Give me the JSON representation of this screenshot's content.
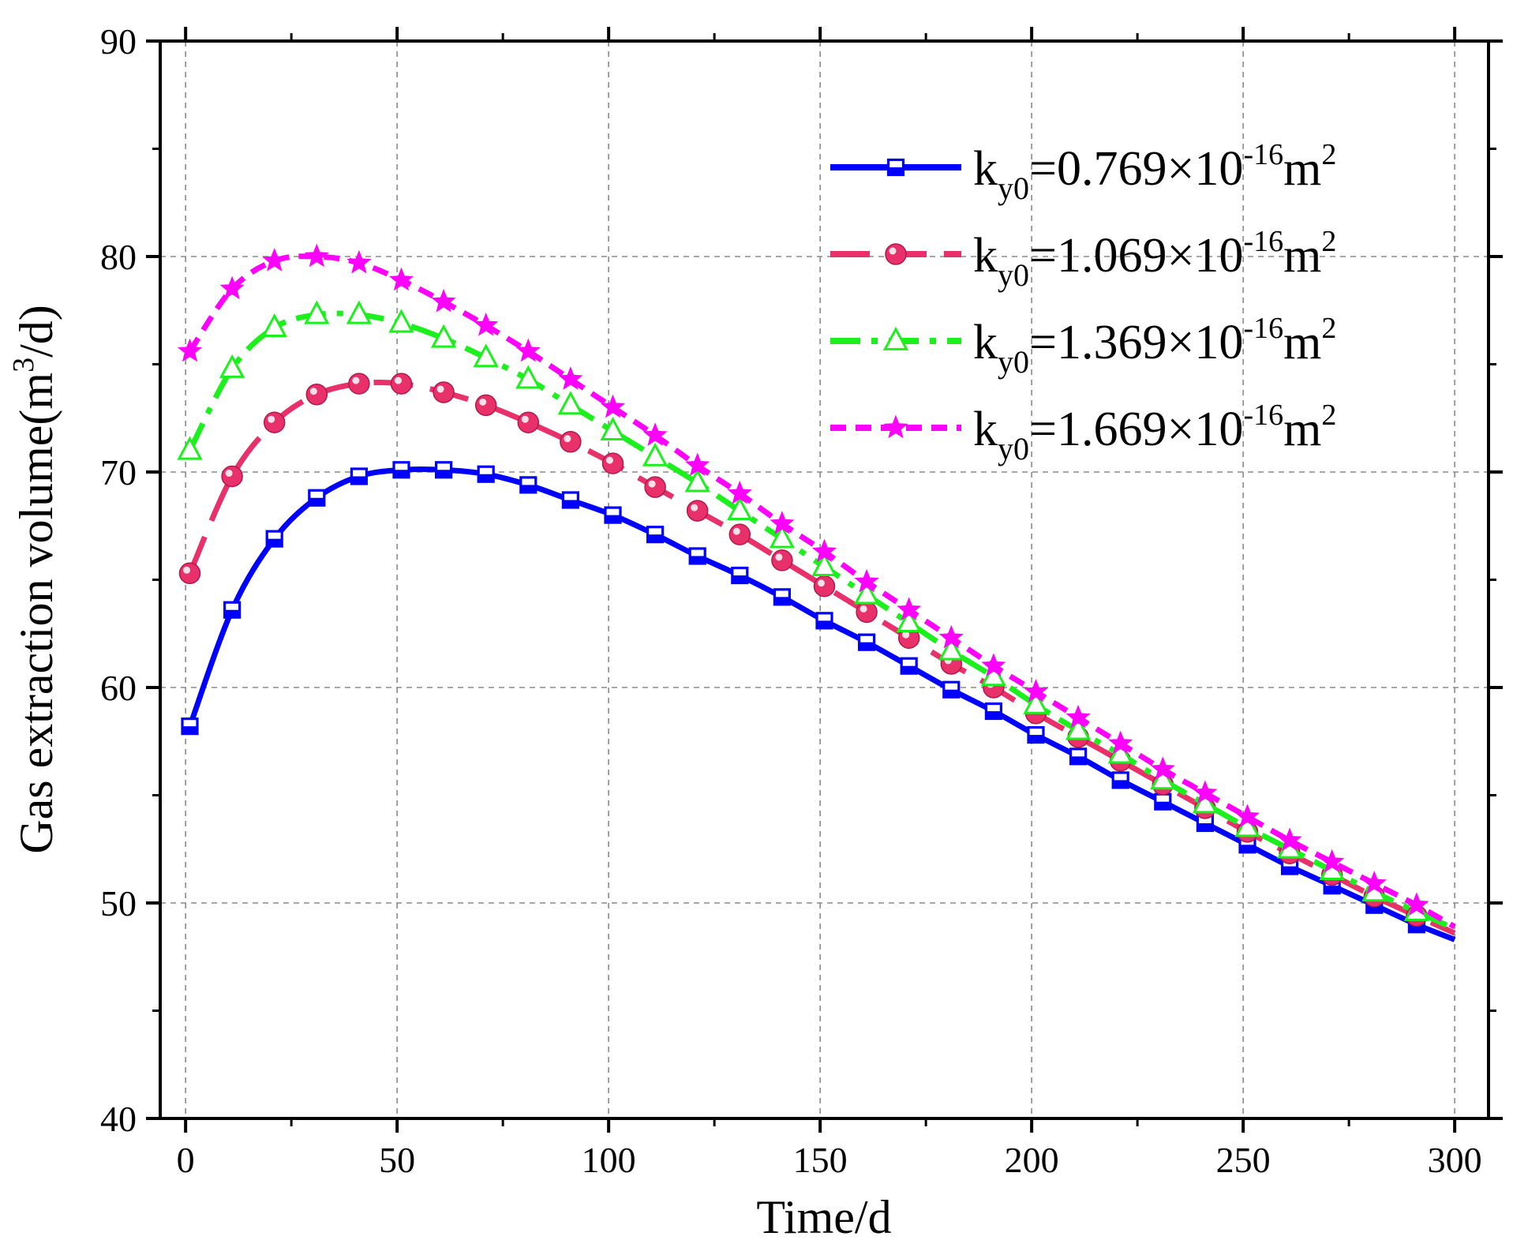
{
  "chart_data": {
    "type": "line",
    "title": "",
    "xlabel": "Time/d",
    "ylabel": {
      "main": "Gas extraction volume(m",
      "sup": "3",
      "tail": "/d)"
    },
    "xlim": [
      -6,
      308
    ],
    "ylim": [
      40,
      90
    ],
    "xticks": [
      0,
      50,
      100,
      150,
      200,
      250,
      300
    ],
    "yticks": [
      40,
      50,
      60,
      70,
      80,
      90
    ],
    "x_tick_labels": [
      "0",
      "50",
      "100",
      "150",
      "200",
      "250",
      "300"
    ],
    "y_tick_labels": [
      "40",
      "50",
      "60",
      "70",
      "80",
      "90"
    ],
    "grid": true,
    "legend_position": "top-right",
    "x": [
      1,
      11,
      21,
      31,
      41,
      51,
      61,
      71,
      81,
      91,
      101,
      111,
      121,
      131,
      141,
      151,
      161,
      171,
      181,
      191,
      201,
      211,
      221,
      231,
      241,
      251,
      261,
      271,
      281,
      291,
      300
    ],
    "series": [
      {
        "name": "ky0=0.769×10-16m2",
        "legend": {
          "k": "k",
          "sub": "y0",
          "mid": "=0.769×10",
          "sup1": "-16",
          "unit": "m",
          "sup2": "2"
        },
        "color": "#0000ff",
        "marker": "square-half",
        "dash": "",
        "values": [
          58.2,
          63.6,
          66.9,
          68.8,
          69.8,
          70.1,
          70.1,
          69.9,
          69.4,
          68.7,
          68.0,
          67.1,
          66.1,
          65.2,
          64.2,
          63.1,
          62.1,
          61.0,
          59.9,
          58.9,
          57.8,
          56.8,
          55.7,
          54.7,
          53.7,
          52.7,
          51.7,
          50.8,
          49.9,
          49.0,
          48.3
        ]
      },
      {
        "name": "ky0=1.069×10-16m2",
        "legend": {
          "k": "k",
          "sub": "y0",
          "mid": "=1.069×10",
          "sup1": "-16",
          "unit": "m",
          "sup2": "2"
        },
        "color": "#e8306a",
        "marker": "circle",
        "dash": "50 22",
        "values": [
          65.3,
          69.8,
          72.3,
          73.6,
          74.1,
          74.1,
          73.7,
          73.1,
          72.3,
          71.4,
          70.4,
          69.3,
          68.2,
          67.1,
          65.9,
          64.7,
          63.5,
          62.3,
          61.1,
          60.0,
          58.8,
          57.7,
          56.6,
          55.5,
          54.4,
          53.3,
          52.3,
          51.3,
          50.3,
          49.4,
          48.6
        ]
      },
      {
        "name": "ky0=1.369×10-16m2",
        "legend": {
          "k": "k",
          "sub": "y0",
          "mid": "=1.369×10",
          "sup1": "-16",
          "unit": "m",
          "sup2": "2"
        },
        "color": "#1cf01c",
        "marker": "triangle",
        "dash": "38 14 8 14",
        "values": [
          71.0,
          74.8,
          76.7,
          77.3,
          77.3,
          76.9,
          76.2,
          75.3,
          74.3,
          73.1,
          71.9,
          70.7,
          69.5,
          68.2,
          66.9,
          65.6,
          64.3,
          63.0,
          61.7,
          60.5,
          59.2,
          58.0,
          56.9,
          55.7,
          54.6,
          53.5,
          52.5,
          51.5,
          50.5,
          49.6,
          48.8
        ]
      },
      {
        "name": "ky0=1.669×10-16m2",
        "legend": {
          "k": "k",
          "sub": "y0",
          "mid": "=1.669×10",
          "sup1": "-16",
          "unit": "m",
          "sup2": "2"
        },
        "color": "#ff00ff",
        "marker": "star",
        "dash": "20 12",
        "values": [
          75.6,
          78.5,
          79.8,
          80.0,
          79.7,
          78.9,
          77.9,
          76.8,
          75.6,
          74.3,
          73.0,
          71.7,
          70.3,
          69.0,
          67.6,
          66.3,
          64.9,
          63.6,
          62.3,
          61.0,
          59.8,
          58.6,
          57.4,
          56.2,
          55.1,
          54.0,
          52.9,
          51.9,
          50.9,
          49.9,
          48.9
        ]
      }
    ]
  }
}
